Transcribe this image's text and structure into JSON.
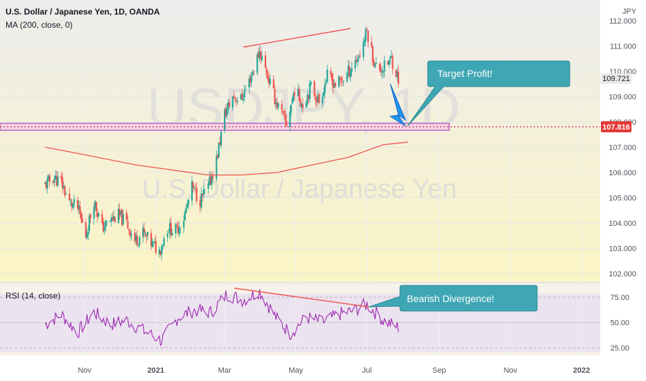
{
  "header": {
    "title": "U.S. Dollar / Japanese Yen, 1D, OANDA",
    "indicator": "MA (200, close, 0)",
    "currency": "JPY"
  },
  "watermark": {
    "symbol": "USDJPY, 1D",
    "name": "U.S. Dollar / Japanese Yen"
  },
  "rsi_panel": {
    "label": "RSI (14, close)"
  },
  "annotations": {
    "target": "Target Profit!",
    "divergence": "Bearish Divergence!"
  },
  "colors": {
    "up_candle": "#26a69a",
    "down_candle": "#ef5350",
    "ma_line": "#ef5350",
    "support_line": "#d81b60",
    "rsi_line": "#9c27b0",
    "callout": "#3fa7b4",
    "arrow": "#2196f3",
    "price_bg_top": "#ededed",
    "price_bg_bottom": "#fbf4c4"
  },
  "chart_data": [
    {
      "type": "candlestick",
      "ylim": [
        102.0,
        112.0
      ],
      "y_ticks": [
        "112.000",
        "111.000",
        "110.000",
        "109.000",
        "108.000",
        "107.000",
        "106.000",
        "105.000",
        "104.000",
        "103.000",
        "102.000"
      ],
      "x_ticks": [
        "Nov",
        "2021",
        "Mar",
        "May",
        "Jul",
        "Sep",
        "Nov",
        "2022"
      ],
      "last_price": "109.721",
      "support_level": "107.816",
      "close_path": [
        [
          "2020-09-28",
          105.5
        ],
        [
          "2020-10-05",
          105.8
        ],
        [
          "2020-10-12",
          105.6
        ],
        [
          "2020-10-19",
          104.8
        ],
        [
          "2020-10-26",
          104.6
        ],
        [
          "2020-11-02",
          103.5
        ],
        [
          "2020-11-09",
          104.9
        ],
        [
          "2020-11-16",
          103.8
        ],
        [
          "2020-11-23",
          104.1
        ],
        [
          "2020-11-30",
          104.3
        ],
        [
          "2020-12-07",
          104.0
        ],
        [
          "2020-12-14",
          103.3
        ],
        [
          "2020-12-21",
          103.6
        ],
        [
          "2020-12-28",
          103.2
        ],
        [
          "2021-01-04",
          102.9
        ],
        [
          "2021-01-11",
          103.8
        ],
        [
          "2021-01-18",
          103.7
        ],
        [
          "2021-01-25",
          104.2
        ],
        [
          "2021-02-01",
          105.4
        ],
        [
          "2021-02-08",
          104.9
        ],
        [
          "2021-02-15",
          105.4
        ],
        [
          "2021-02-22",
          106.5
        ],
        [
          "2021-03-01",
          108.3
        ],
        [
          "2021-03-08",
          109.0
        ],
        [
          "2021-03-15",
          108.9
        ],
        [
          "2021-03-22",
          109.6
        ],
        [
          "2021-03-31",
          110.8
        ],
        [
          "2021-04-07",
          109.8
        ],
        [
          "2021-04-14",
          108.8
        ],
        [
          "2021-04-23",
          107.9
        ],
        [
          "2021-04-30",
          109.3
        ],
        [
          "2021-05-07",
          108.7
        ],
        [
          "2021-05-14",
          109.4
        ],
        [
          "2021-05-21",
          108.8
        ],
        [
          "2021-05-28",
          109.8
        ],
        [
          "2021-06-04",
          109.5
        ],
        [
          "2021-06-11",
          109.7
        ],
        [
          "2021-06-18",
          110.2
        ],
        [
          "2021-06-25",
          110.7
        ],
        [
          "2021-07-01",
          111.6
        ],
        [
          "2021-07-08",
          110.2
        ],
        [
          "2021-07-15",
          110.1
        ],
        [
          "2021-07-22",
          110.5
        ],
        [
          "2021-07-28",
          109.7
        ]
      ]
    },
    {
      "type": "line",
      "series": [
        {
          "name": "MA (200, close, 0)",
          "points": [
            [
              "2020-09-28",
              107.0
            ],
            [
              "2020-11-01",
              106.7
            ],
            [
              "2020-12-15",
              106.3
            ],
            [
              "2021-01-15",
              106.1
            ],
            [
              "2021-02-15",
              105.9
            ],
            [
              "2021-03-15",
              105.9
            ],
            [
              "2021-04-15",
              106.0
            ],
            [
              "2021-05-15",
              106.3
            ],
            [
              "2021-06-15",
              106.6
            ],
            [
              "2021-07-15",
              107.1
            ],
            [
              "2021-08-05",
              107.2
            ]
          ]
        }
      ]
    },
    {
      "type": "line",
      "ylim": [
        20,
        85
      ],
      "y_ticks": [
        "75.00",
        "50.00",
        "25.00"
      ],
      "series": [
        {
          "name": "RSI (14, close)",
          "points": [
            [
              "2020-09-28",
              48
            ],
            [
              "2020-10-12",
              58
            ],
            [
              "2020-10-26",
              40
            ],
            [
              "2020-11-09",
              60
            ],
            [
              "2020-11-23",
              48
            ],
            [
              "2020-12-07",
              52
            ],
            [
              "2020-12-21",
              42
            ],
            [
              "2021-01-06",
              32
            ],
            [
              "2021-01-20",
              55
            ],
            [
              "2021-02-03",
              62
            ],
            [
              "2021-02-17",
              60
            ],
            [
              "2021-03-03",
              78
            ],
            [
              "2021-03-17",
              72
            ],
            [
              "2021-03-31",
              81
            ],
            [
              "2021-04-14",
              55
            ],
            [
              "2021-04-26",
              39
            ],
            [
              "2021-05-10",
              55
            ],
            [
              "2021-05-24",
              50
            ],
            [
              "2021-06-07",
              58
            ],
            [
              "2021-06-21",
              62
            ],
            [
              "2021-07-01",
              68
            ],
            [
              "2021-07-15",
              52
            ],
            [
              "2021-07-28",
              45
            ]
          ]
        }
      ]
    }
  ]
}
